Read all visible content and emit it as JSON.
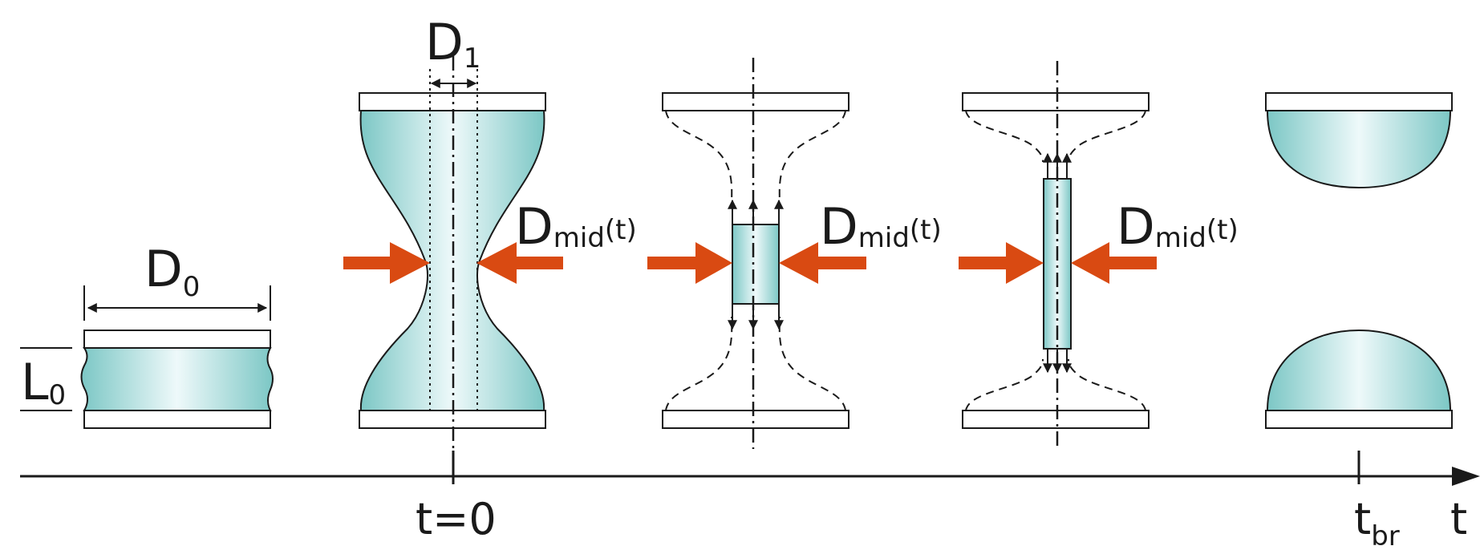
{
  "diagram": {
    "colors": {
      "fluid_edge": "#7cc7c5",
      "fluid_center": "#eef9fa",
      "force_arrow": "#d94a12",
      "line": "#1a1a1a"
    },
    "labels": {
      "d0_main": "D",
      "d0_sub": "0",
      "l0_main": "L",
      "l0_sub": "0",
      "d1_main": "D",
      "d1_sub": "1",
      "dmid_main": "D",
      "dmid_sub": "mid",
      "dmid_arg": "(t)",
      "t_zero": "t=0",
      "t_br_main": "t",
      "t_br_sub": "br",
      "t_axis": "t"
    },
    "stages": [
      {
        "name": "initial-sample"
      },
      {
        "name": "stretched-at-t0"
      },
      {
        "name": "thinning-filament"
      },
      {
        "name": "thin-filament"
      },
      {
        "name": "breakup"
      }
    ]
  }
}
